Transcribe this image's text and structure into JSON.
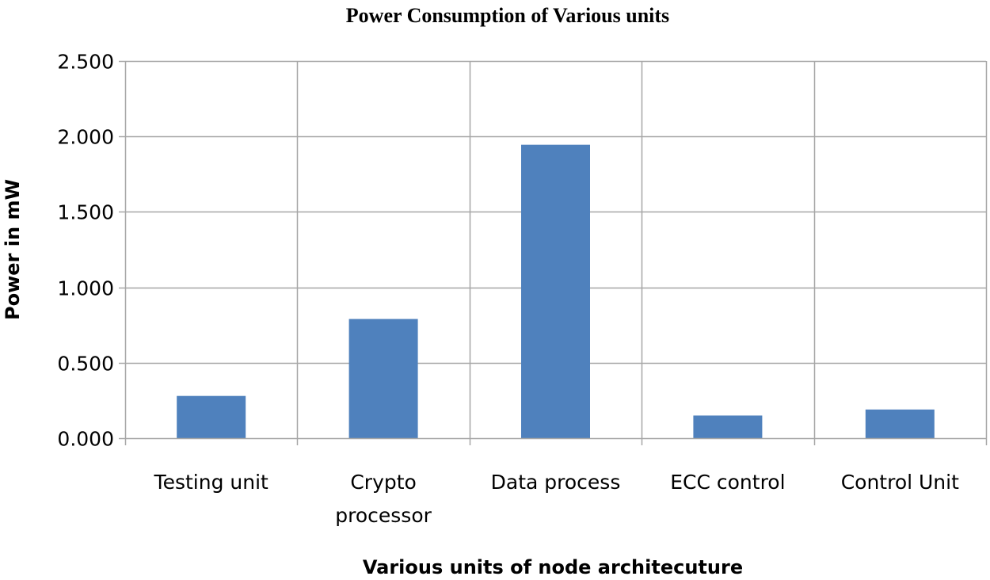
{
  "chart_data": {
    "type": "bar",
    "title": "Power Consumption of Various units",
    "xlabel": "Various units of node architecuture",
    "ylabel": "Power in mW",
    "categories": [
      [
        "Testing unit"
      ],
      [
        "Crypto",
        "processor"
      ],
      [
        "Data process"
      ],
      [
        "ECC control"
      ],
      [
        "Control Unit"
      ]
    ],
    "values": [
      0.28,
      0.79,
      1.945,
      0.15,
      0.19
    ],
    "ylim": [
      0,
      2.5
    ],
    "yticks": [
      0,
      0.5,
      1.0,
      1.5,
      2.0,
      2.5
    ],
    "ytick_labels": [
      "0.000",
      "0.500",
      "1.000",
      "1.500",
      "2.000",
      "2.500"
    ],
    "grid": {
      "horizontal": true,
      "vertical": true
    },
    "legend": "none",
    "bar_color": "#4f81bd",
    "grid_color": "#a6a6a6"
  }
}
